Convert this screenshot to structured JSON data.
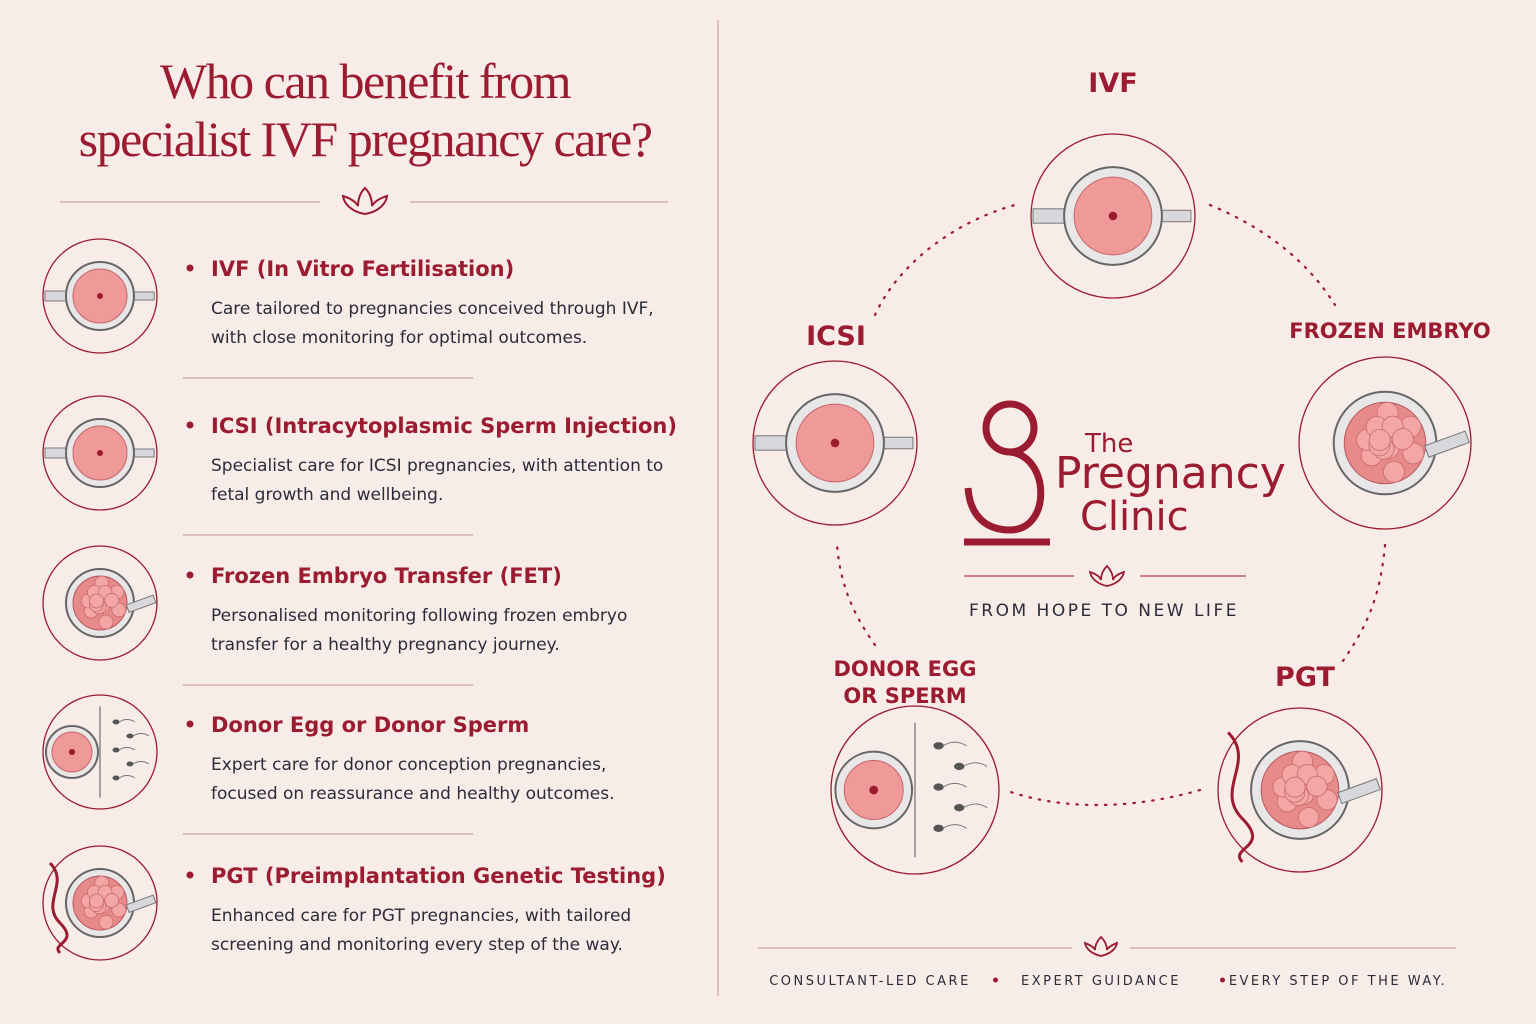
{
  "header": {
    "title_lines": [
      "Who can benefit from",
      "specialist IVF pregnancy care?"
    ]
  },
  "items": [
    {
      "title": "IVF (In Vitro Fertilisation)",
      "lines": [
        "Care tailored to pregnancies conceived through IVF,",
        "with close monitoring for optimal outcomes."
      ]
    },
    {
      "title": "ICSI (Intracytoplasmic Sperm Injection)",
      "lines": [
        "Specialist care for ICSI pregnancies, with attention to",
        "fetal growth and wellbeing."
      ]
    },
    {
      "title": "Frozen Embryo Transfer (FET)",
      "lines": [
        "Personalised monitoring following frozen embryo",
        "transfer for a healthy pregnancy journey."
      ]
    },
    {
      "title": "Donor Egg or Donor Sperm",
      "lines": [
        "Expert care for donor conception pregnancies,",
        "focused on reassurance and healthy outcomes."
      ]
    },
    {
      "title": "PGT (Preimplantation Genetic Testing)",
      "lines": [
        "Enhanced care for PGT pregnancies, with tailored",
        "screening and monitoring every step of the way."
      ]
    }
  ],
  "nodes": [
    {
      "label_lines": [
        "IVF"
      ]
    },
    {
      "label_lines": [
        "ICSI"
      ]
    },
    {
      "label_lines": [
        "FROZEN EMBRYO"
      ]
    },
    {
      "label_lines": [
        "DONOR EGG",
        "OR SPERM"
      ]
    },
    {
      "label_lines": [
        "PGT"
      ]
    }
  ],
  "logo": {
    "lines": [
      "The",
      "Pregnancy",
      "Clinic"
    ],
    "tagline": "FROM HOPE TO NEW LIFE"
  },
  "footer": {
    "items": [
      "CONSULTANT-LED CARE",
      "EXPERT GUIDANCE",
      "EVERY STEP OF THE WAY."
    ]
  }
}
